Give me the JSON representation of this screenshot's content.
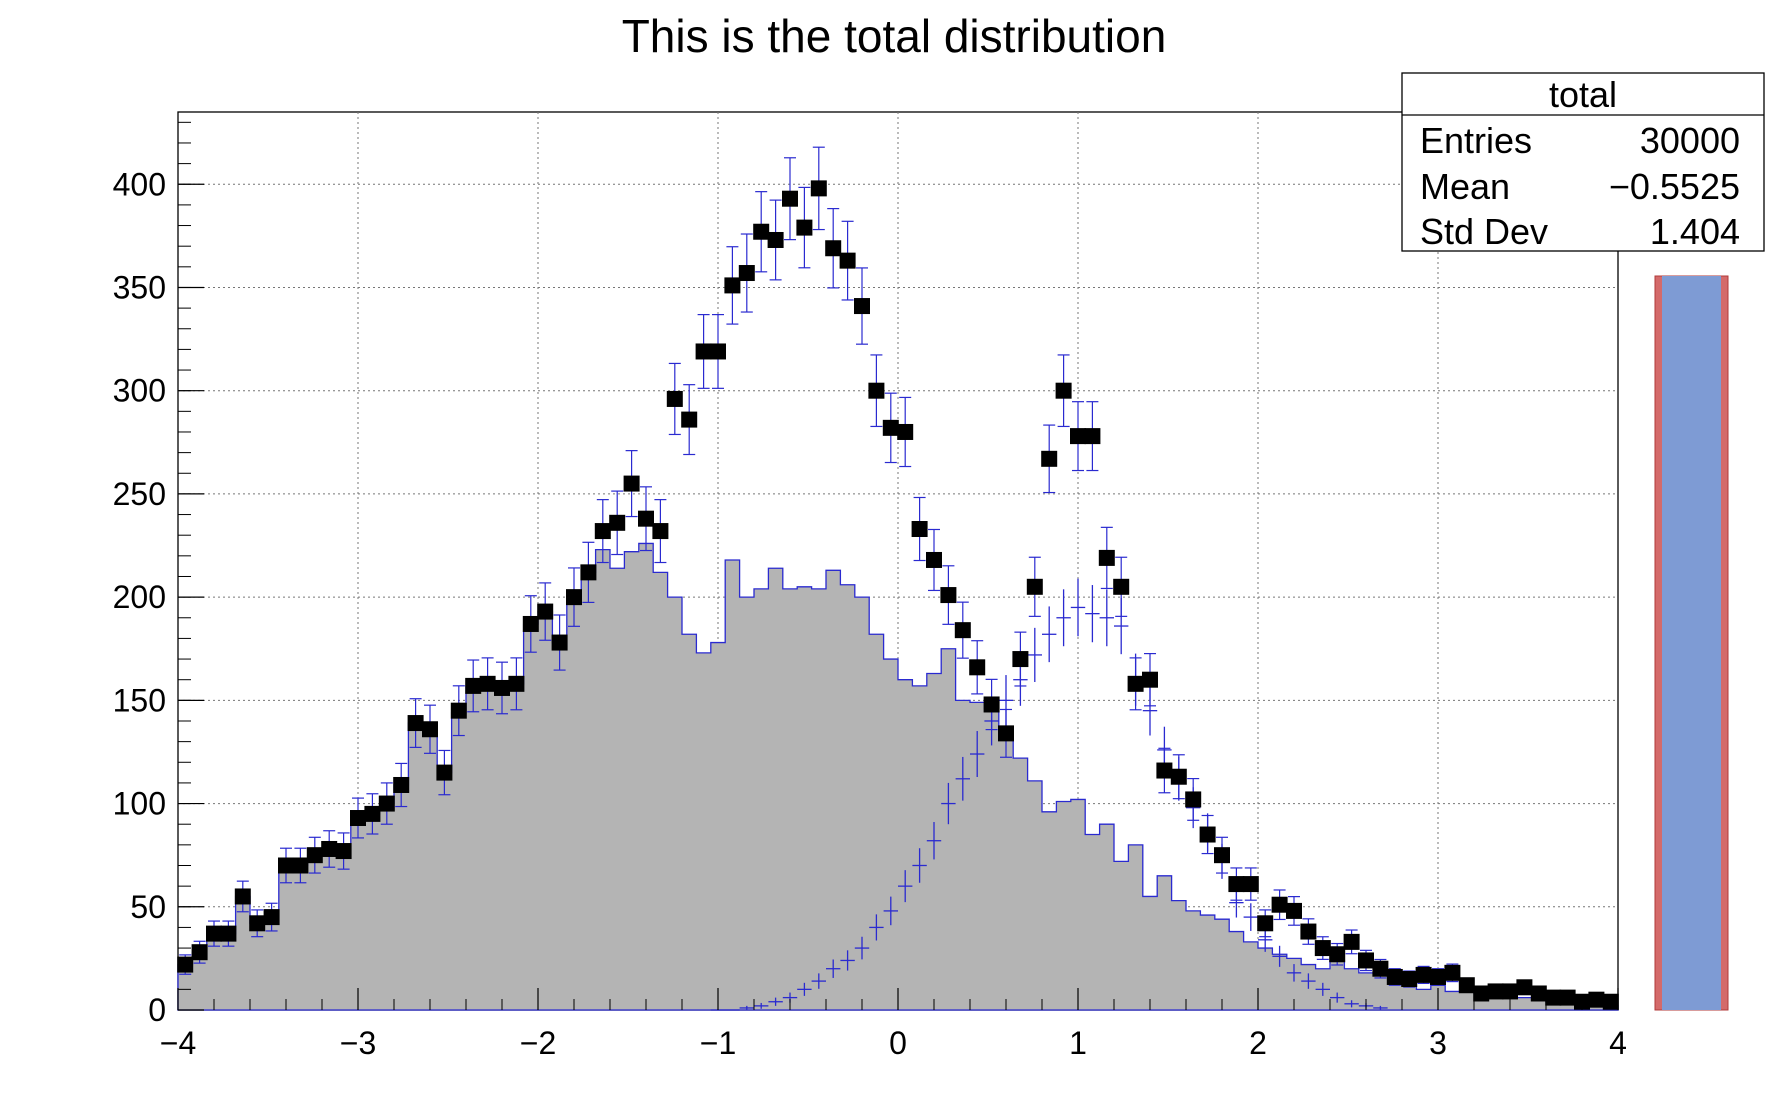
{
  "chart_data": {
    "type": "bar",
    "title": "This is the total distribution",
    "xlabel": "",
    "ylabel": "",
    "xlim": [
      -4,
      4
    ],
    "ylim": [
      0,
      435
    ],
    "grid": true,
    "x_ticks": [
      "−4",
      "−3",
      "−2",
      "−1",
      "0",
      "1",
      "2",
      "3",
      "4"
    ],
    "y_ticks": [
      "0",
      "50",
      "100",
      "150",
      "200",
      "250",
      "300",
      "350",
      "400"
    ],
    "bin_width": 0.08,
    "stats_box": {
      "title": "total",
      "rows": [
        {
          "label": "Entries",
          "value": "30000"
        },
        {
          "label": "Mean",
          "value": "−0.5525"
        },
        {
          "label": "Std Dev",
          "value": "1.404"
        }
      ]
    },
    "series": [
      {
        "style": "filled-histogram",
        "values": [
          22,
          28,
          37,
          37,
          55,
          42,
          45,
          70,
          70,
          75,
          78,
          77,
          93,
          95,
          100,
          109,
          139,
          136,
          115,
          144,
          157,
          158,
          156,
          158,
          187,
          193,
          178,
          200,
          212,
          223,
          214,
          222,
          226,
          212,
          200,
          182,
          173,
          178,
          218,
          200,
          204,
          214,
          204,
          205,
          204,
          213,
          206,
          200,
          182,
          170,
          160,
          157,
          163,
          175,
          150,
          149,
          146,
          134,
          122,
          111,
          96,
          101,
          102,
          85,
          90,
          72,
          80,
          55,
          65,
          53,
          48,
          46,
          44,
          38,
          33,
          30,
          27,
          25,
          22,
          20,
          24,
          20,
          18,
          17,
          16,
          12,
          10,
          12,
          9,
          10,
          8,
          8,
          6,
          6,
          5,
          4,
          3,
          2,
          2,
          2
        ]
      },
      {
        "style": "cross-markers",
        "start_bin": 37,
        "values": [
          0,
          0,
          1,
          2,
          4,
          6,
          10,
          14,
          20,
          24,
          30,
          40,
          48,
          60,
          70,
          82,
          100,
          112,
          124,
          140,
          150,
          160,
          172,
          182,
          190,
          195,
          192,
          190,
          186,
          160,
          145,
          126,
          112,
          98,
          86,
          72,
          52,
          45,
          34,
          26,
          18,
          14,
          10,
          6,
          3,
          2,
          1
        ]
      },
      {
        "style": "square-markers",
        "values": [
          22,
          28,
          37,
          37,
          55,
          42,
          45,
          70,
          70,
          75,
          78,
          77,
          93,
          95,
          100,
          109,
          139,
          136,
          115,
          145,
          157,
          158,
          156,
          158,
          187,
          193,
          178,
          200,
          212,
          232,
          236,
          255,
          238,
          232,
          296,
          286,
          319,
          319,
          351,
          357,
          377,
          373,
          393,
          379,
          398,
          369,
          363,
          341,
          300,
          282,
          280,
          233,
          218,
          201,
          184,
          166,
          148,
          134,
          170,
          205,
          267,
          300,
          278,
          278,
          219,
          205,
          158,
          160,
          116,
          113,
          102,
          85,
          75,
          61,
          61,
          42,
          51,
          48,
          38,
          30,
          27,
          33,
          24,
          20,
          16,
          15,
          17,
          16,
          18,
          12,
          8,
          9,
          9,
          11,
          8,
          6,
          6,
          4,
          5,
          4
        ]
      }
    ]
  }
}
